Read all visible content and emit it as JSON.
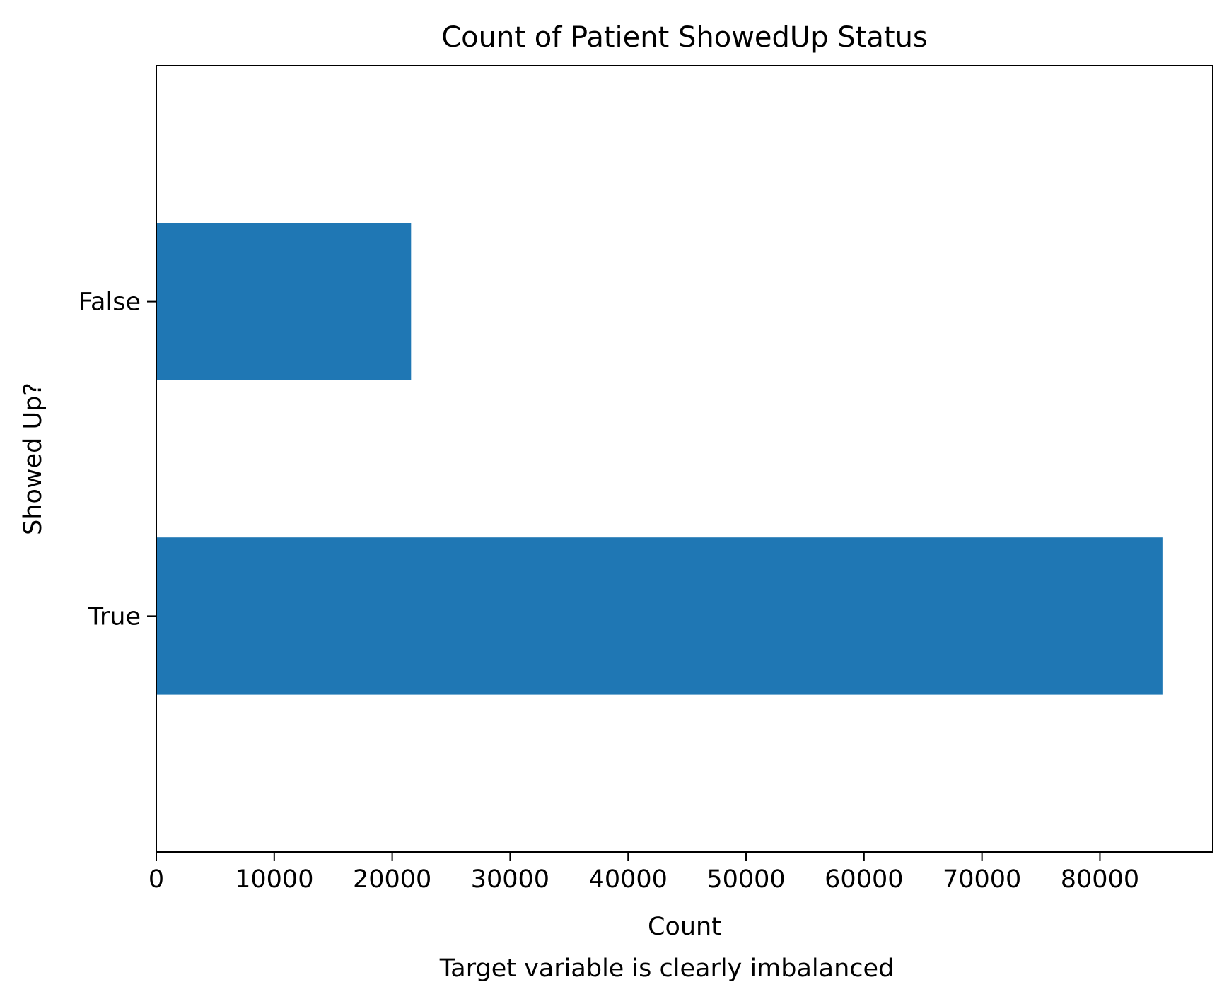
{
  "chart_data": {
    "type": "bar",
    "orientation": "horizontal",
    "title": "Count of Patient ShowedUp Status",
    "xlabel": "Count",
    "ylabel": "Showed Up?",
    "caption": "Target variable is clearly imbalanced",
    "categories": [
      "False",
      "True"
    ],
    "values": [
      21600,
      85300
    ],
    "xlim": [
      0,
      89565
    ],
    "xticks": [
      0,
      10000,
      20000,
      30000,
      40000,
      50000,
      60000,
      70000,
      80000
    ],
    "grid": false,
    "legend": "none",
    "bar_color": "#1f77b4"
  }
}
